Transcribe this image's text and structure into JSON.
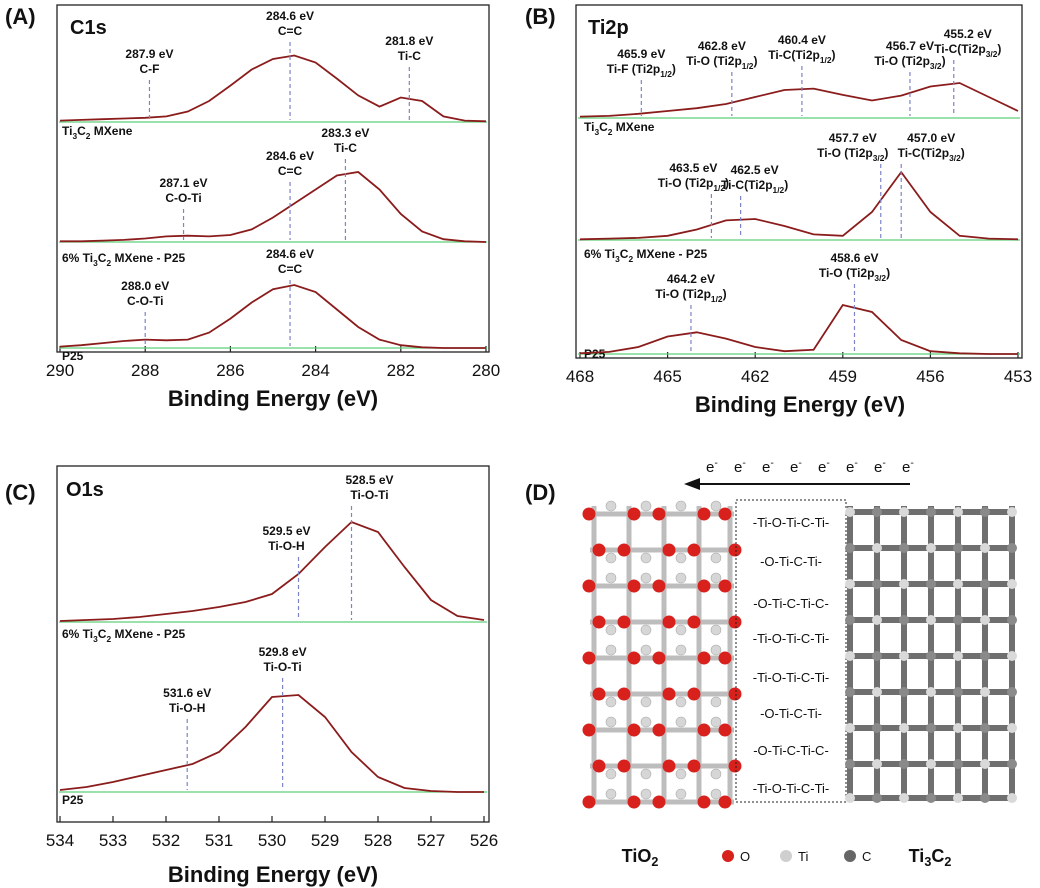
{
  "chart_data": [
    {
      "type": "line",
      "panel": "(A)",
      "title": "C1s",
      "xlabel": "Binding Energy (eV)",
      "xlim": [
        290,
        280
      ],
      "xticks": [
        290,
        288,
        286,
        284,
        282,
        280
      ],
      "x": [
        290,
        289.5,
        289,
        288.5,
        288,
        287.5,
        287,
        286.5,
        286,
        285.5,
        285,
        284.5,
        284,
        283.5,
        283,
        282.5,
        282,
        281.5,
        281,
        280.5,
        280
      ],
      "series": [
        {
          "name": "Ti3C2 MXene",
          "color": "#8b1c1c",
          "values": [
            2,
            3,
            4,
            5,
            6,
            8,
            15,
            30,
            52,
            75,
            90,
            95,
            85,
            62,
            38,
            22,
            35,
            30,
            8,
            2,
            1
          ],
          "peaks": [
            {
              "value": 287.9,
              "label": "287.9 eV",
              "name": "C-F"
            },
            {
              "value": 284.6,
              "label": "284.6 eV",
              "name": "C=C"
            },
            {
              "value": 281.8,
              "label": "281.8 eV",
              "name": "Ti-C"
            }
          ]
        },
        {
          "name": "6% Ti3C2 MXene - P25",
          "color": "#8b1c1c",
          "values": [
            1,
            1,
            2,
            3,
            5,
            8,
            9,
            8,
            10,
            18,
            35,
            55,
            75,
            95,
            100,
            75,
            40,
            15,
            4,
            1,
            0
          ],
          "peaks": [
            {
              "value": 287.1,
              "label": "287.1 eV",
              "name": "C-O-Ti"
            },
            {
              "value": 284.6,
              "label": "284.6 eV",
              "name": "C=C"
            },
            {
              "value": 283.3,
              "label": "283.3 eV",
              "name": "Ti-C"
            }
          ]
        },
        {
          "name": "P25",
          "color": "#8b1c1c",
          "values": [
            2,
            4,
            7,
            10,
            12,
            11,
            12,
            22,
            42,
            65,
            84,
            90,
            80,
            55,
            30,
            12,
            4,
            1,
            0,
            0,
            0
          ],
          "peaks": [
            {
              "value": 288.0,
              "label": "288.0 eV",
              "name": "C-O-Ti"
            },
            {
              "value": 284.6,
              "label": "284.6 eV",
              "name": "C=C"
            }
          ]
        }
      ]
    },
    {
      "type": "line",
      "panel": "(B)",
      "title": "Ti2p",
      "xlabel": "Binding Energy (eV)",
      "xlim": [
        468,
        453
      ],
      "xticks": [
        468,
        465,
        462,
        459,
        456,
        453
      ],
      "x": [
        468,
        467,
        466,
        465,
        464,
        463,
        462,
        461,
        460,
        459,
        458,
        457,
        456,
        455,
        454,
        453
      ],
      "series": [
        {
          "name": "Ti3C2 MXene",
          "color": "#8b1c1c",
          "values": [
            2,
            3,
            6,
            10,
            14,
            20,
            30,
            40,
            42,
            33,
            25,
            32,
            45,
            50,
            30,
            10
          ],
          "peaks": [
            {
              "value": 465.9,
              "label": "465.9 eV",
              "name": "Ti-F (Ti2p1/2)"
            },
            {
              "value": 462.8,
              "label": "462.8 eV",
              "name": "Ti-O (Ti2p1/2)"
            },
            {
              "value": 460.4,
              "label": "460.4 eV",
              "name": "Ti-C(Ti2p1/2)"
            },
            {
              "value": 456.7,
              "label": "456.7 eV",
              "name": "Ti-O (Ti2p3/2)"
            },
            {
              "value": 455.2,
              "label": "455.2 eV",
              "name": "Ti-C(Ti2p3/2)"
            }
          ]
        },
        {
          "name": "6% Ti3C2 MXene - P25",
          "color": "#8b1c1c",
          "values": [
            1,
            2,
            3,
            6,
            15,
            28,
            30,
            20,
            8,
            6,
            40,
            97,
            40,
            6,
            2,
            1
          ],
          "peaks": [
            {
              "value": 463.5,
              "label": "463.5 eV",
              "name": "Ti-O (Ti2p1/2)"
            },
            {
              "value": 462.5,
              "label": "462.5 eV",
              "name": "Ti-C(Ti2p1/2)"
            },
            {
              "value": 457.7,
              "label": "457.7 eV",
              "name": "Ti-O (Ti2p3/2)"
            },
            {
              "value": 457.0,
              "label": "457.0 eV",
              "name": "Ti-C(Ti2p3/2)"
            }
          ]
        },
        {
          "name": "P25",
          "color": "#8b1c1c",
          "values": [
            1,
            3,
            10,
            25,
            31,
            22,
            10,
            4,
            6,
            70,
            60,
            20,
            4,
            1,
            0,
            0
          ],
          "peaks": [
            {
              "value": 464.2,
              "label": "464.2 eV",
              "name": "Ti-O (Ti2p1/2)"
            },
            {
              "value": 458.6,
              "label": "458.6 eV",
              "name": "Ti-O (Ti2p3/2)"
            }
          ]
        }
      ]
    },
    {
      "type": "line",
      "panel": "(C)",
      "title": "O1s",
      "xlabel": "Binding Energy (eV)",
      "xlim": [
        534,
        526
      ],
      "xticks": [
        534,
        533,
        532,
        531,
        530,
        529,
        528,
        527,
        526
      ],
      "x": [
        534,
        533.5,
        533,
        532.5,
        532,
        531.5,
        531,
        530.5,
        530,
        529.5,
        529,
        528.5,
        528,
        527.5,
        527,
        526.5,
        526
      ],
      "series": [
        {
          "name": "6% Ti3C2 MXene - P25",
          "color": "#8b1c1c",
          "values": [
            1,
            2,
            3,
            5,
            8,
            11,
            15,
            20,
            28,
            48,
            75,
            100,
            90,
            55,
            22,
            6,
            2
          ],
          "peaks": [
            {
              "value": 528.5,
              "label": "528.5 eV",
              "name": "Ti-O-Ti"
            },
            {
              "value": 529.5,
              "label": "529.5 eV",
              "name": "Ti-O-H"
            }
          ]
        },
        {
          "name": "P25",
          "color": "#8b1c1c",
          "values": [
            2,
            5,
            10,
            16,
            22,
            28,
            40,
            65,
            95,
            97,
            75,
            40,
            15,
            4,
            1,
            0,
            0
          ],
          "peaks": [
            {
              "value": 529.8,
              "label": "529.8 eV",
              "name": "Ti-O-Ti"
            },
            {
              "value": 531.6,
              "label": "531.6 eV",
              "name": "Ti-O-H"
            }
          ]
        }
      ]
    }
  ],
  "diagram": {
    "panel": "(D)",
    "electrons": [
      "e-",
      "e-",
      "e-",
      "e-",
      "e-",
      "e-",
      "e-",
      "e-"
    ],
    "interface": [
      "-Ti-O-Ti-C-Ti-",
      "-O-Ti-C-Ti-",
      "-O-Ti-C-Ti-C-",
      "-Ti-O-Ti-C-Ti-",
      "-Ti-O-Ti-C-Ti-",
      "-O-Ti-C-Ti-",
      "-O-Ti-C-Ti-C-",
      "-Ti-O-Ti-C-Ti-"
    ],
    "left_label": "TiO2",
    "right_label": "Ti3C2",
    "legend": [
      {
        "label": "O",
        "color": "#d8201c"
      },
      {
        "label": "Ti",
        "color": "#cfcfcf"
      },
      {
        "label": "C",
        "color": "#666666"
      }
    ]
  }
}
